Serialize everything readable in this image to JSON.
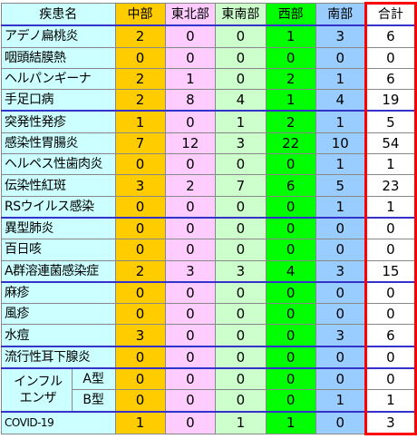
{
  "header": {
    "disease": "疾患名",
    "central": "中部",
    "northeast": "東北部",
    "southeast": "東南部",
    "west": "西部",
    "south": "南部",
    "total": "合計"
  },
  "rows": [
    {
      "name": "アデノ扁桃炎",
      "v": [
        "2",
        "0",
        "0",
        "1",
        "3"
      ],
      "t": "6"
    },
    {
      "name": "咽頭結膜熱",
      "v": [
        "0",
        "0",
        "0",
        "0",
        "0"
      ],
      "t": "0"
    },
    {
      "name": "ヘルパンギーナ",
      "v": [
        "2",
        "1",
        "0",
        "2",
        "1"
      ],
      "t": "6"
    },
    {
      "name": "手足口病",
      "v": [
        "2",
        "8",
        "4",
        "1",
        "4"
      ],
      "t": "19"
    },
    {
      "name": "突発性発疹",
      "v": [
        "1",
        "0",
        "1",
        "2",
        "1"
      ],
      "t": "5"
    },
    {
      "name": "感染性胃腸炎",
      "v": [
        "7",
        "12",
        "3",
        "22",
        "10"
      ],
      "t": "54"
    },
    {
      "name": "ヘルペス性歯肉炎",
      "v": [
        "0",
        "0",
        "0",
        "0",
        "1"
      ],
      "t": "1"
    },
    {
      "name": "伝染性紅斑",
      "v": [
        "3",
        "2",
        "7",
        "6",
        "5"
      ],
      "t": "23"
    },
    {
      "name": "RSウイルス感染",
      "v": [
        "0",
        "0",
        "0",
        "0",
        "1"
      ],
      "t": "1"
    },
    {
      "name": "異型肺炎",
      "v": [
        "0",
        "0",
        "0",
        "0",
        "0"
      ],
      "t": "0"
    },
    {
      "name": "百日咳",
      "v": [
        "0",
        "0",
        "0",
        "0",
        "0"
      ],
      "t": "0"
    },
    {
      "name": "A群溶連菌感染症",
      "v": [
        "2",
        "3",
        "3",
        "4",
        "3"
      ],
      "t": "15"
    },
    {
      "name": "麻疹",
      "v": [
        "0",
        "0",
        "0",
        "0",
        "0"
      ],
      "t": "0"
    },
    {
      "name": "風疹",
      "v": [
        "0",
        "0",
        "0",
        "0",
        "0"
      ],
      "t": "0"
    },
    {
      "name": "水痘",
      "v": [
        "3",
        "0",
        "0",
        "0",
        "3"
      ],
      "t": "6"
    },
    {
      "name": "流行性耳下腺炎",
      "v": [
        "0",
        "0",
        "0",
        "0",
        "0"
      ],
      "t": "0"
    }
  ],
  "influenza": {
    "label1": "インフル",
    "label2": "エンザ",
    "a": {
      "name": "A型",
      "v": [
        "0",
        "0",
        "0",
        "0",
        "0"
      ],
      "t": "0"
    },
    "b": {
      "name": "B型",
      "v": [
        "0",
        "0",
        "0",
        "0",
        "1"
      ],
      "t": "1"
    }
  },
  "covid": {
    "name": "COVID-19",
    "v": [
      "1",
      "0",
      "1",
      "1",
      "0"
    ],
    "t": "3"
  }
}
